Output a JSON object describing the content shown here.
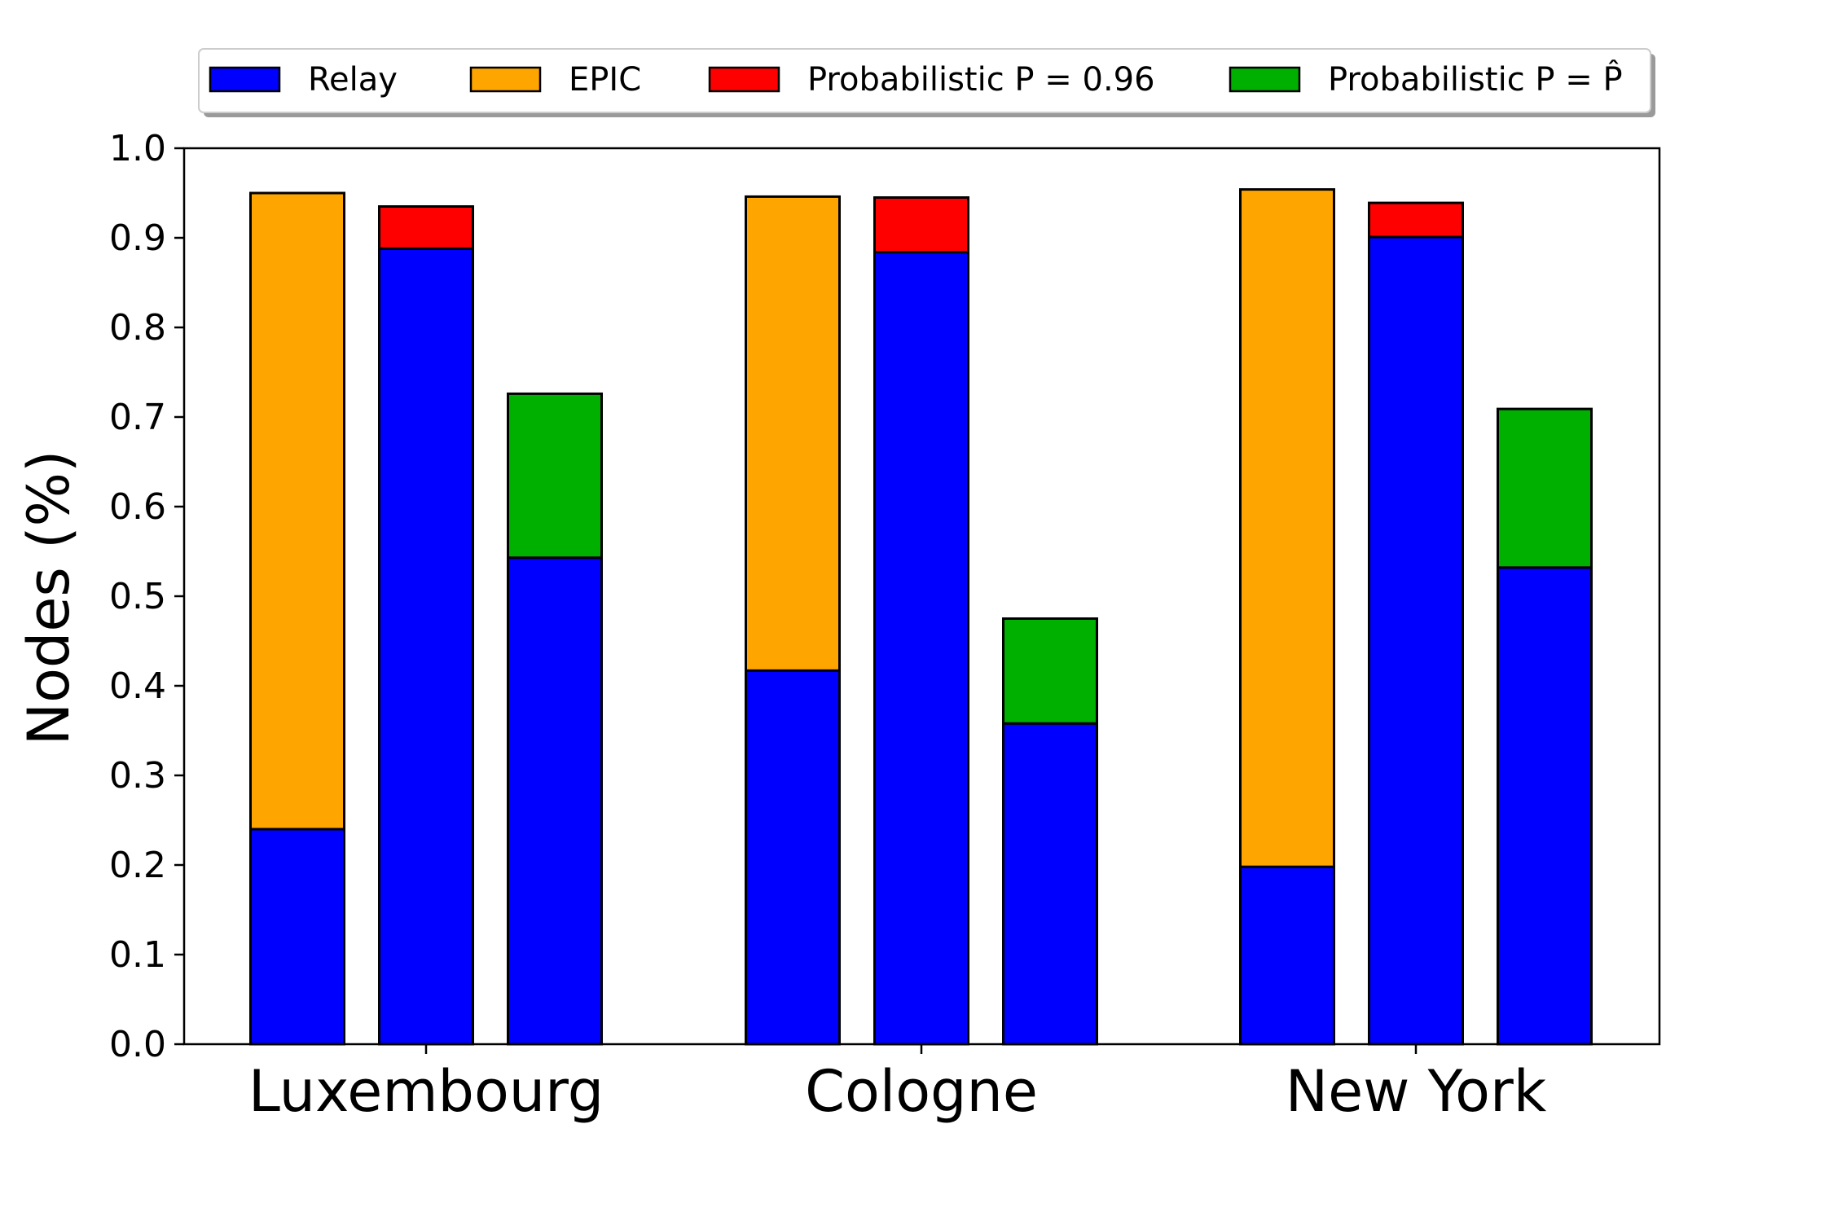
{
  "chart_data": {
    "type": "bar",
    "stacked": true,
    "ylabel": "Nodes (%)",
    "xlabel": "",
    "title": "",
    "ylim": [
      0.0,
      1.0
    ],
    "yticks": [
      "0.0",
      "0.1",
      "0.2",
      "0.3",
      "0.4",
      "0.5",
      "0.6",
      "0.7",
      "0.8",
      "0.9",
      "1.0"
    ],
    "grid": false,
    "legend_position": "top",
    "categories": [
      "Luxembourg",
      "Cologne",
      "New York"
    ],
    "legend": [
      {
        "label": "Relay",
        "color": "#0000ff"
      },
      {
        "label": "EPIC",
        "color": "#ffa500"
      },
      {
        "label": "Probabilistic P = 0.96",
        "color": "#ff0000"
      },
      {
        "label": "Probabilistic P = P̂",
        "color": "#00b000"
      }
    ],
    "bar_groups": [
      {
        "name": "EPIC",
        "relay": [
          0.24,
          0.417,
          0.198
        ],
        "top": [
          0.71,
          0.529,
          0.756
        ],
        "top_color": "#ffa500"
      },
      {
        "name": "Probabilistic P = 0.96",
        "relay": [
          0.888,
          0.884,
          0.901
        ],
        "top": [
          0.047,
          0.061,
          0.038
        ],
        "top_color": "#ff0000"
      },
      {
        "name": "Probabilistic P = P̂",
        "relay": [
          0.543,
          0.358,
          0.532
        ],
        "top": [
          0.183,
          0.117,
          0.177
        ],
        "top_color": "#00b000"
      }
    ],
    "relay_color": "#0000ff"
  }
}
